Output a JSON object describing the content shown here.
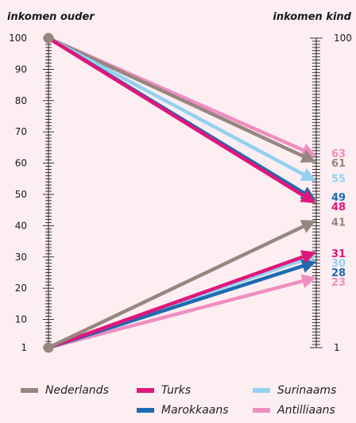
{
  "axis_titles": {
    "left": "inkomen ouder",
    "right": "inkomen kind"
  },
  "chart_data": {
    "type": "line",
    "left_ticks": [
      1,
      10,
      20,
      30,
      40,
      50,
      60,
      70,
      80,
      90,
      100
    ],
    "right_ticks": [
      1,
      100
    ],
    "ylim": [
      1,
      100
    ],
    "series": [
      {
        "name": "Nederlands",
        "color": "#968680",
        "from_bottom": 41,
        "from_top": 61
      },
      {
        "name": "Turks",
        "color": "#e1157a",
        "from_bottom": 31,
        "from_top": 48
      },
      {
        "name": "Surinaams",
        "color": "#92d1f0",
        "from_bottom": 30,
        "from_top": 55
      },
      {
        "name": "Marokkaans",
        "color": "#1c6bb0",
        "from_bottom": 28,
        "from_top": 49
      },
      {
        "name": "Antilliaans",
        "color": "#f08dc0",
        "from_bottom": 23,
        "from_top": 63
      }
    ],
    "end_labels": [
      {
        "text": "63",
        "color": "#f08dc0",
        "value": 63
      },
      {
        "text": "61",
        "color": "#968680",
        "value": 61
      },
      {
        "text": "55",
        "color": "#92d1f0",
        "value": 55
      },
      {
        "text": "49",
        "color": "#1c6bb0",
        "value": 49
      },
      {
        "text": "48",
        "color": "#e1157a",
        "value": 48
      },
      {
        "text": "41",
        "color": "#968680",
        "value": 41
      },
      {
        "text": "31",
        "color": "#e1157a",
        "value": 31
      },
      {
        "text": "30",
        "color": "#92d1f0",
        "value": 30
      },
      {
        "text": "28",
        "color": "#1c6bb0",
        "value": 28
      },
      {
        "text": "23",
        "color": "#f08dc0",
        "value": 23
      }
    ]
  },
  "legend": [
    {
      "label": "Nederlands",
      "color": "#968680"
    },
    {
      "label": "Turks",
      "color": "#e1157a"
    },
    {
      "label": "Surinaams",
      "color": "#92d1f0"
    },
    {
      "label": "Marokkaans",
      "color": "#1c6bb0"
    },
    {
      "label": "Antilliaans",
      "color": "#f08dc0"
    }
  ]
}
